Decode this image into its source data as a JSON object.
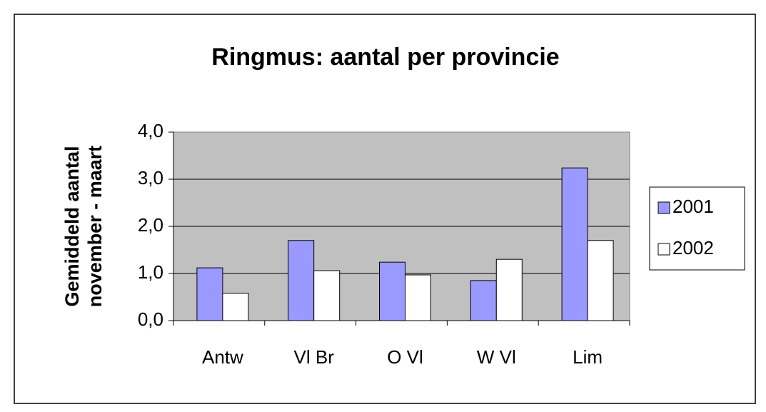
{
  "chart_data": {
    "type": "bar",
    "title": "Ringmus: aantal per provincie",
    "ylabel": [
      "Gemiddeld aantal",
      "november - maart"
    ],
    "categories": [
      "Antw",
      "Vl Br",
      "O Vl",
      "W Vl",
      "Lim"
    ],
    "series": [
      {
        "name": "2001",
        "color": "#9999ff",
        "values": [
          1.12,
          1.7,
          1.24,
          0.85,
          3.24
        ]
      },
      {
        "name": "2002",
        "color": "#ffffff",
        "values": [
          0.58,
          1.06,
          0.97,
          1.3,
          1.7
        ]
      }
    ],
    "ylim": [
      0,
      4
    ],
    "yticks": [
      {
        "value": 0,
        "label": "0,0"
      },
      {
        "value": 1,
        "label": "1,0"
      },
      {
        "value": 2,
        "label": "2,0"
      },
      {
        "value": 3,
        "label": "3,0"
      },
      {
        "value": 4,
        "label": "4,0"
      }
    ],
    "grid": true,
    "legend": "right"
  }
}
